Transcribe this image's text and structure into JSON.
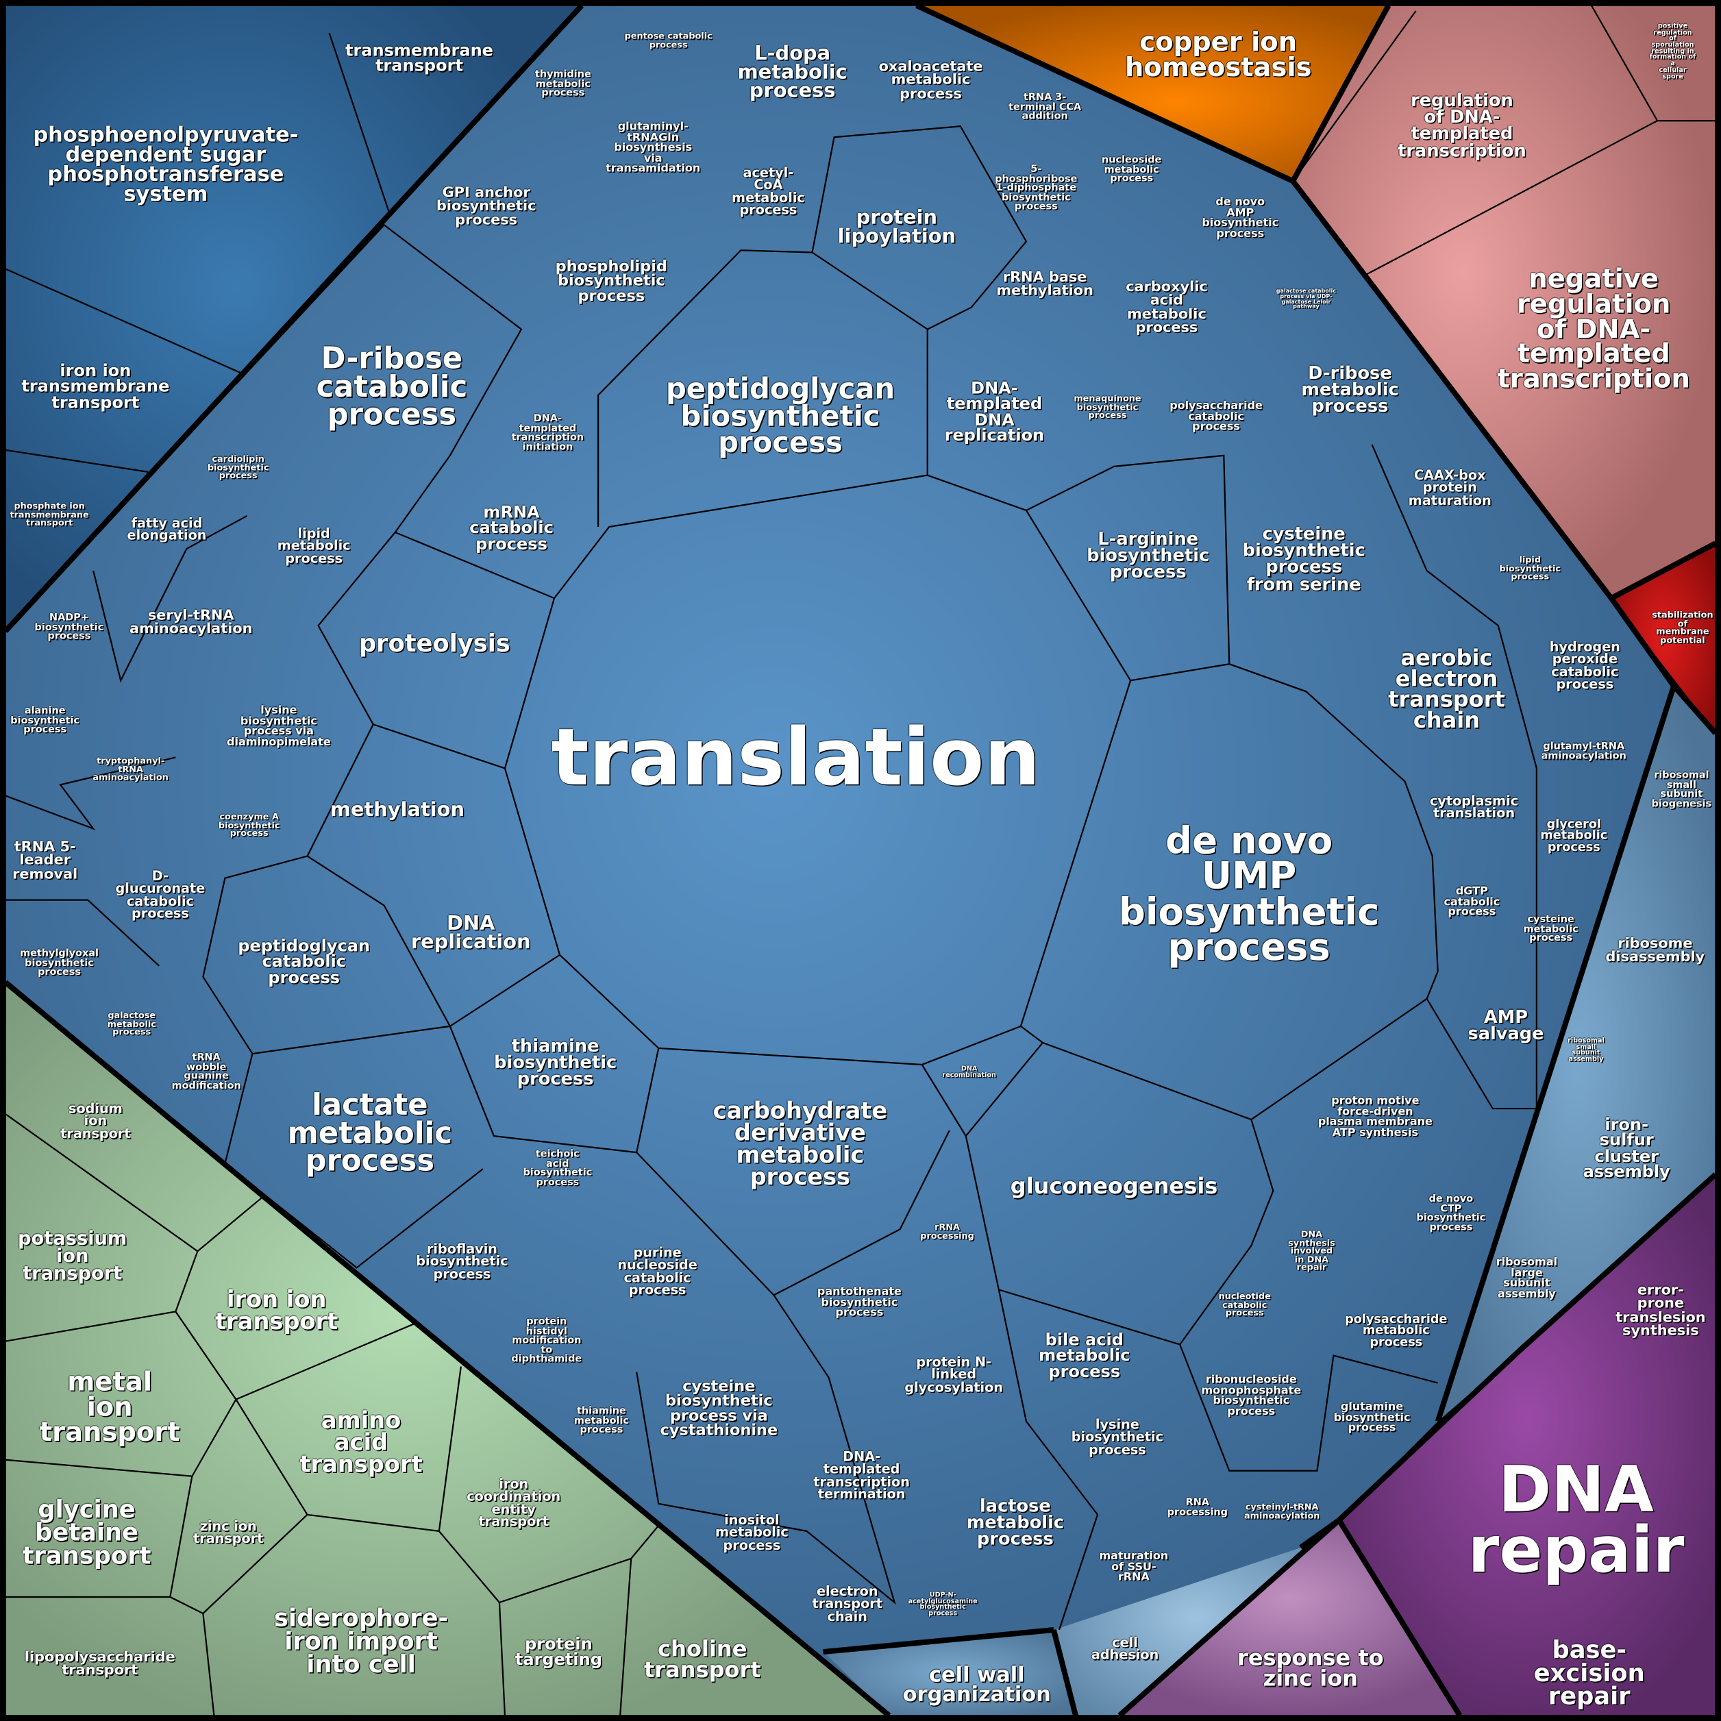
{
  "colors": {
    "main_blue": "#4a7aa6",
    "dark_blue": "#2e5f8c",
    "orange": "#e07000",
    "pink": "#d98a8a",
    "red": "#c01818",
    "light_blue": "#6b93b6",
    "purple": "#7b3a86",
    "light_purple": "#a677a8",
    "green": "#9cc49c",
    "border": "#000000"
  },
  "labels": [
    "translation",
    "de novo\nUMP\nbiosynthetic\nprocess",
    "peptidoglycan\nbiosynthetic\nprocess",
    "D-ribose\ncatabolic\nprocess",
    "lactate\nmetabolic\nprocess",
    "carbohydrate\nderivative\nmetabolic\nprocess",
    "gluconeogenesis",
    "proteolysis",
    "methylation",
    "DNA\nreplication",
    "aerobic\nelectron\ntransport\nchain",
    "protein\nlipoylation",
    "L-dopa\nmetabolic\nprocess",
    "phospholipid\nbiosynthetic\nprocess",
    "mRNA\ncatabolic\nprocess",
    "thiamine\nbiosynthetic\nprocess",
    "peptidoglycan\ncatabolic\nprocess",
    "L-arginine\nbiosynthetic\nprocess",
    "cysteine\nbiosynthetic\nprocess\nfrom serine",
    "DNA-\ntemplated\nDNA\nreplication",
    "GPI anchor\nbiosynthetic\nprocess",
    "oxaloacetate\nmetabolic\nprocess",
    "acetyl-\nCoA\nmetabolic\nprocess",
    "glutaminyl-\ntRNAGln\nbiosynthesis\nvia\ntransamidation",
    "thymidine\nmetabolic\nprocess",
    "pentose catabolic\nprocess",
    "tRNA 3-\nterminal CCA\naddition",
    "5-\nphosphoribose\n1-diphosphate\nbiosynthetic\nprocess",
    "nucleoside\nmetabolic\nprocess",
    "de novo\nAMP\nbiosynthetic\nprocess",
    "rRNA base\nmethylation",
    "carboxylic\nacid\nmetabolic\nprocess",
    "galactose catabolic\nprocess via UDP-\ngalactose Leloir\npathway",
    "D-ribose\nmetabolic\nprocess",
    "menaquinone\nbiosynthetic\nprocess",
    "polysaccharide\ncatabolic\nprocess",
    "CAAX-box\nprotein\nmaturation",
    "lipid\nbiosynthetic\nprocess",
    "hydrogen\nperoxide\ncatabolic\nprocess",
    "glutamyl-tRNA\naminoacylation",
    "cytoplasmic\ntranslation",
    "glycerol\nmetabolic\nprocess",
    "dGTP\ncatabolic\nprocess",
    "cysteine\nmetabolic\nprocess",
    "AMP\nsalvage",
    "proton motive\nforce-driven\nplasma membrane\nATP synthesis",
    "de novo\nCTP\nbiosynthetic\nprocess",
    "DNA\nsynthesis\ninvolved\nin DNA\nrepair",
    "nucleotide\ncatabolic\nprocess",
    "polysaccharide\nmetabolic\nprocess",
    "glutamine\nbiosynthetic\nprocess",
    "ribonucleoside\nmonophosphate\nbiosynthetic\nprocess",
    "cysteinyl-tRNA\naminoacylation",
    "RNA\nprocessing",
    "lysine\nbiosynthetic\nprocess",
    "bile acid\nmetabolic\nprocess",
    "maturation\nof SSU-\nrRNA",
    "lactose\nmetabolic\nprocess",
    "UDP-N-\nacetylglucosamine\nbiosynthetic\nprocess",
    "protein N-\nlinked\nglycosylation",
    "rRNA\nprocessing",
    "DNA\nrecombination",
    "pantothenate\nbiosynthetic\nprocess",
    "DNA-\ntemplated\ntranscription\ntermination",
    "electron\ntransport\nchain",
    "inositol\nmetabolic\nprocess",
    "cysteine\nbiosynthetic\nprocess via\ncystathionine",
    "thiamine\nmetabolic\nprocess",
    "purine\nnucleoside\ncatabolic\nprocess",
    "protein\nhistidyl\nmodification\nto\ndiphthamide",
    "riboflavin\nbiosynthetic\nprocess",
    "teichoic\nacid\nbiosynthetic\nprocess",
    "tRNA\nwobble\nguanine\nmodification",
    "galactose\nmetabolic\nprocess",
    "methylglyoxal\nbiosynthetic\nprocess",
    "D-\nglucuronate\ncatabolic\nprocess",
    "tRNA 5-\nleader\nremoval",
    "coenzyme A\nbiosynthetic\nprocess",
    "tryptophanyl-\ntRNA\naminoacylation",
    "alanine\nbiosynthetic\nprocess",
    "lysine\nbiosynthetic\nprocess via\ndiaminopimelate",
    "seryl-tRNA\naminoacylation",
    "NADP+\nbiosynthetic\nprocess",
    "fatty acid\nelongation",
    "lipid\nmetabolic\nprocess",
    "cardiolipin\nbiosynthetic\nprocess",
    "DNA-\ntemplated\ntranscription\ninitiation",
    "transmembrane\ntransport",
    "phosphoenolpyruvate-\ndependent sugar\nphosphotransferase\nsystem",
    "iron ion\ntransmembrane\ntransport",
    "phosphate ion\ntransmembrane\ntransport",
    "copper ion\nhomeostasis",
    "regulation\nof DNA-\ntemplated\ntranscription",
    "negative\nregulation\nof DNA-\ntemplated\ntranscription",
    "positive regulation\nof sporulation\nresulting in\nformation of a\ncellular spore",
    "stabilization\nof\nmembrane\npotential",
    "ribosomal\nsmall\nsubunit\nbiogenesis",
    "ribosome\ndisassembly",
    "ribosomal\nsmall\nsubunit\nassembly",
    "iron-\nsulfur\ncluster\nassembly",
    "ribosomal\nlarge\nsubunit\nassembly",
    "error-\nprone\ntranslesion\nsynthesis",
    "DNA\nrepair",
    "base-excision\nrepair",
    "response to\nzinc ion",
    "cell\nadhesion",
    "cell wall\norganization",
    "sodium\nion\ntransport",
    "potassium\nion\ntransport",
    "iron ion\ntransport",
    "metal\nion\ntransport",
    "amino\nacid\ntransport",
    "iron\ncoordination\nentity\ntransport",
    "glycine\nbetaine\ntransport",
    "zinc ion\ntransport",
    "siderophore-\niron import\ninto cell",
    "protein\ntargeting",
    "choline\ntransport",
    "lipopolysaccharide\ntransport"
  ]
}
